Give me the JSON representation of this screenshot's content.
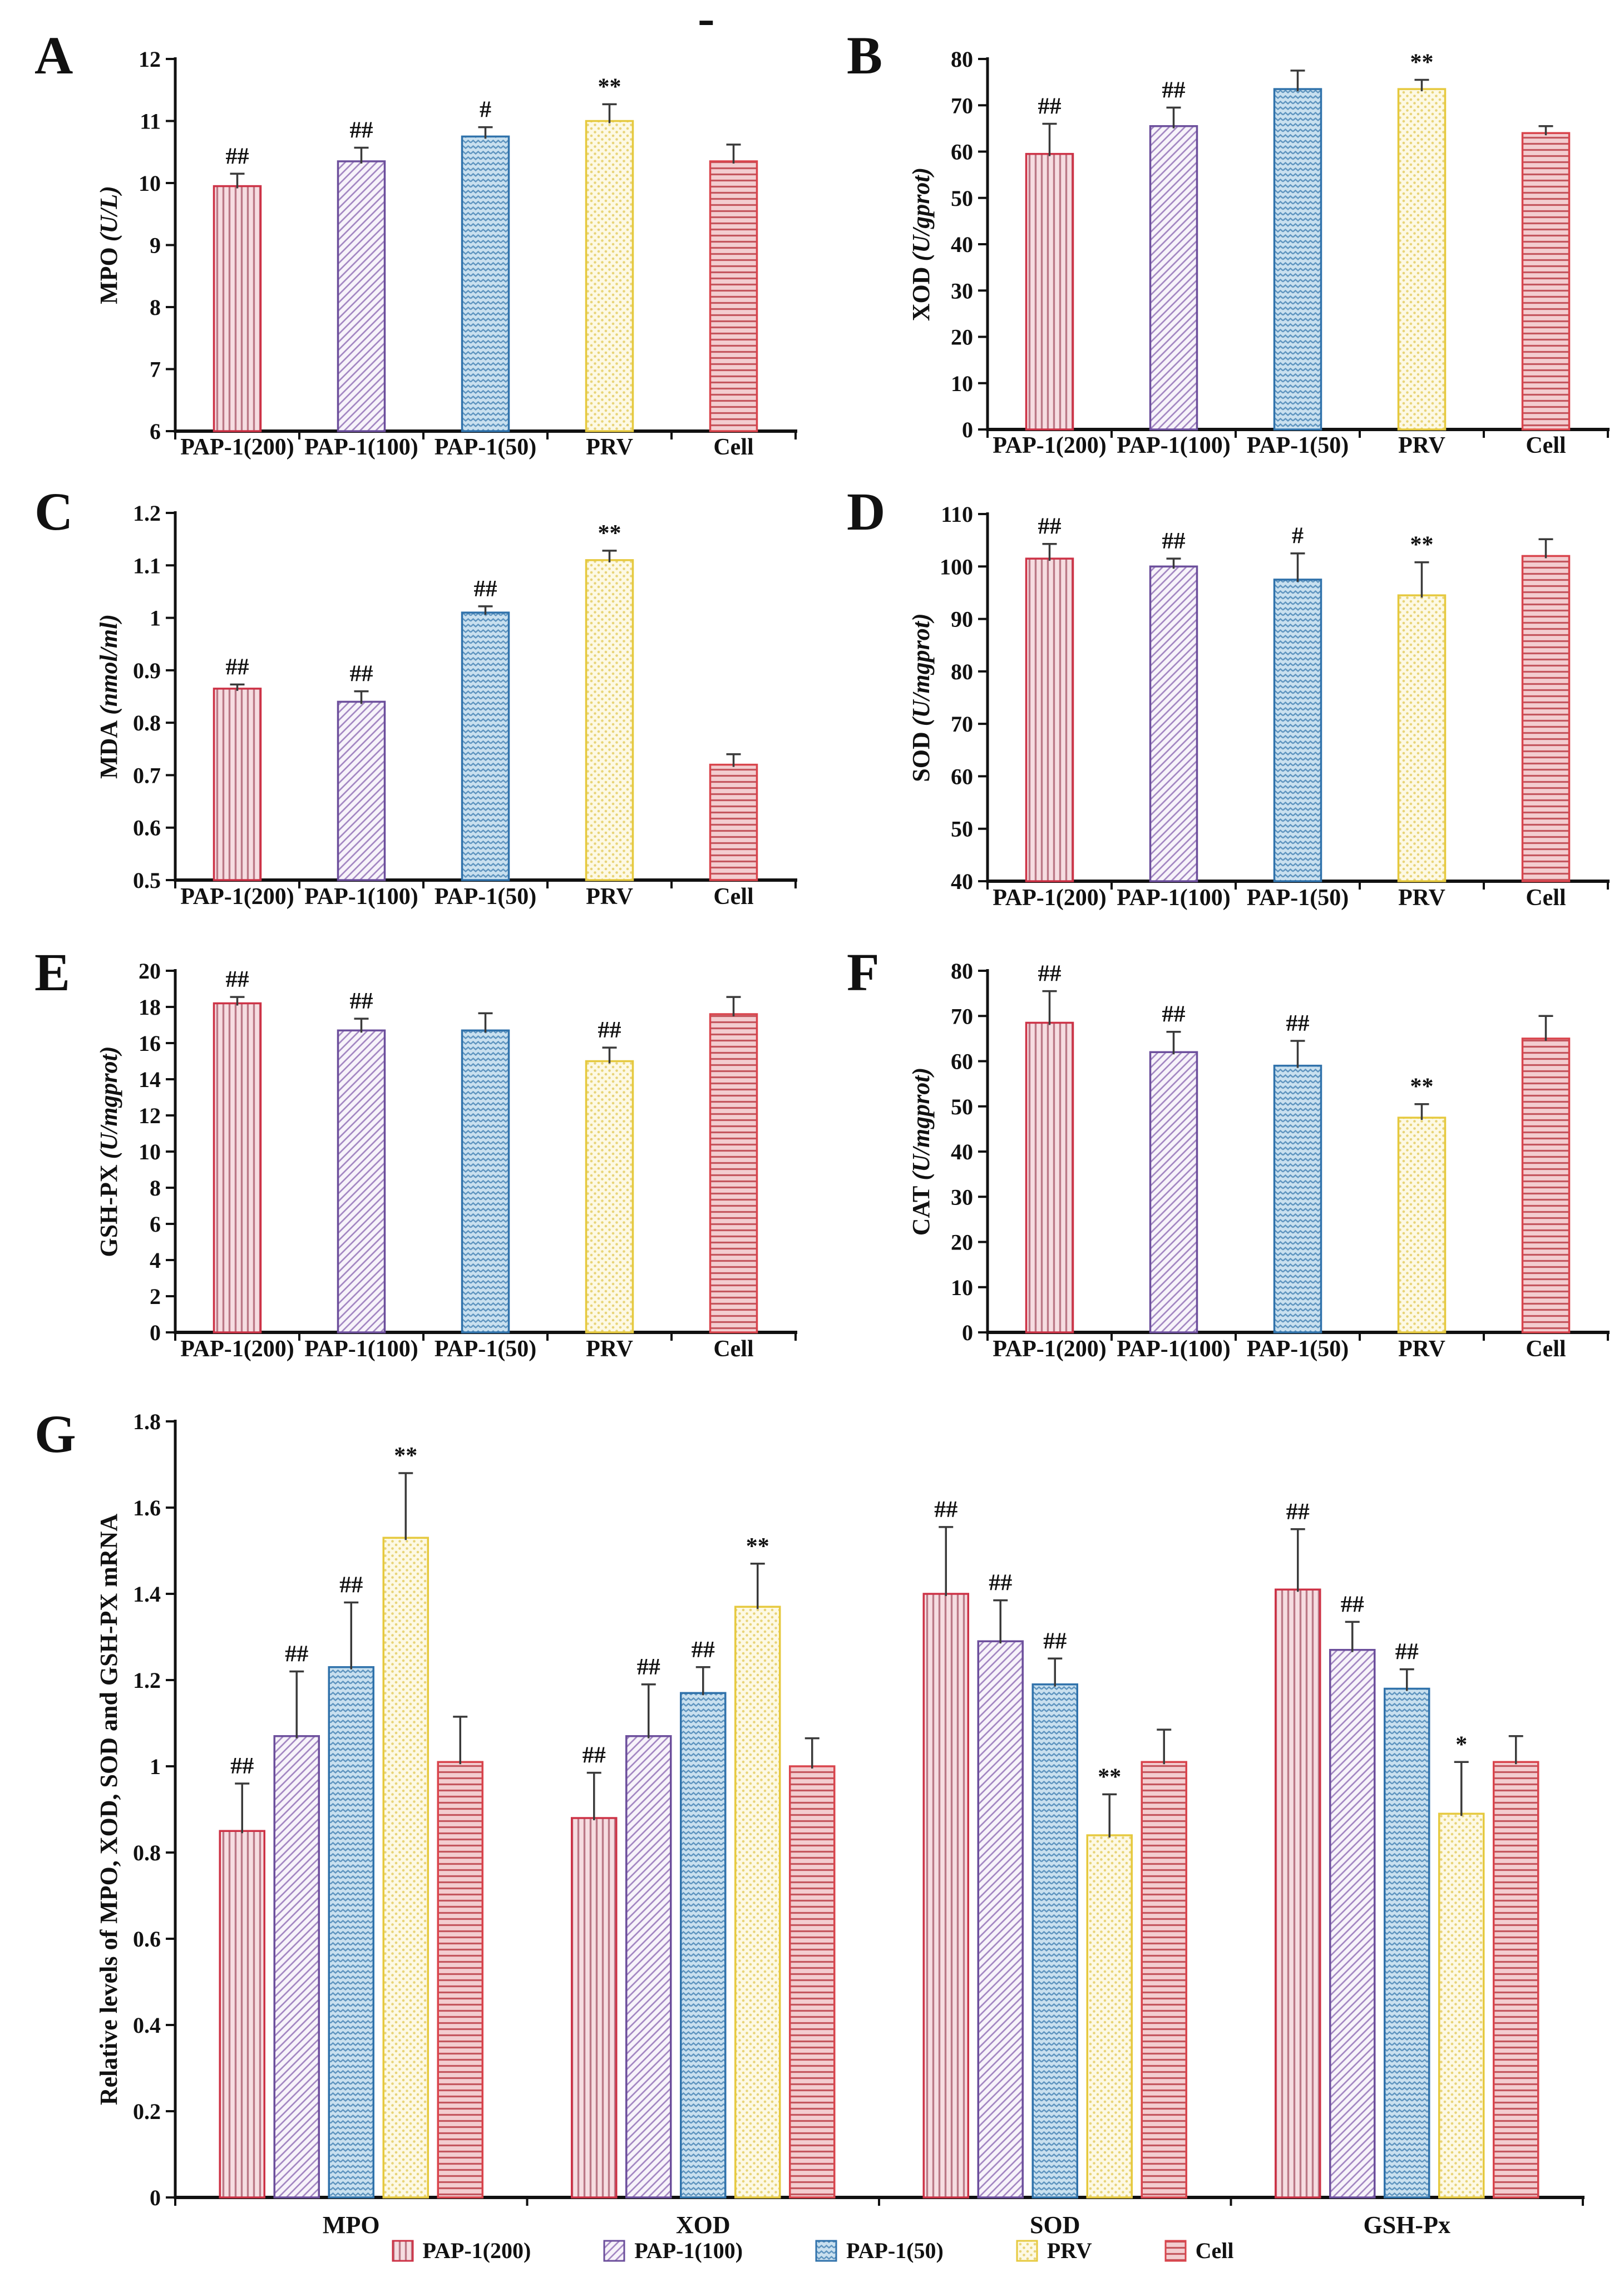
{
  "stray_mark": "-",
  "patterns": [
    {
      "id": "p200",
      "type": "vstripe",
      "bg": "#f6dde1",
      "fg": "#bb7886",
      "border": "#cd3246"
    },
    {
      "id": "p100",
      "type": "diag",
      "bg": "#f7f3fa",
      "fg": "#a083c0",
      "border": "#6c4f9c"
    },
    {
      "id": "p50",
      "type": "zigzag",
      "bg": "#c9e0ef",
      "fg": "#5e94bf",
      "border": "#3072ab"
    },
    {
      "id": "prv",
      "type": "dots",
      "bg": "#fdf9e4",
      "fg": "#e8d478",
      "border": "#e6c93e"
    },
    {
      "id": "cell",
      "type": "hstripe",
      "bg": "#f3cdd0",
      "fg": "#c4565e",
      "border": "#d9444c"
    }
  ],
  "legend": {
    "items": [
      {
        "label": "PAP-1(200)",
        "pattern": "p200"
      },
      {
        "label": "PAP-1(100)",
        "pattern": "p100"
      },
      {
        "label": "PAP-1(50)",
        "pattern": "p50"
      },
      {
        "label": "PRV",
        "pattern": "prv"
      },
      {
        "label": "Cell",
        "pattern": "cell"
      }
    ]
  },
  "chart_data": [
    {
      "id": "A",
      "letter": "A",
      "type": "bar",
      "ylabel": "MPO",
      "ylabel_unit": "(U/L)",
      "ymin": 6,
      "ymax": 12,
      "ystep": 1,
      "categories": [
        "PAP-1(200)",
        "PAP-1(100)",
        "PAP-1(50)",
        "PRV",
        "Cell"
      ],
      "bar_patterns": [
        "p200",
        "p100",
        "p50",
        "prv",
        "cell"
      ],
      "values": [
        9.95,
        10.35,
        10.75,
        11.0,
        10.35
      ],
      "errors": [
        0.2,
        0.22,
        0.15,
        0.27,
        0.27
      ],
      "annotations": [
        "##",
        "##",
        "#",
        "**",
        ""
      ]
    },
    {
      "id": "B",
      "letter": "B",
      "type": "bar",
      "ylabel": "XOD",
      "ylabel_unit": "(U/gprot)",
      "ymin": 0,
      "ymax": 80,
      "ystep": 10,
      "categories": [
        "PAP-1(200)",
        "PAP-1(100)",
        "PAP-1(50)",
        "PRV",
        "Cell"
      ],
      "bar_patterns": [
        "p200",
        "p100",
        "p50",
        "prv",
        "cell"
      ],
      "values": [
        59.5,
        65.5,
        73.5,
        73.5,
        64
      ],
      "errors": [
        6.5,
        4,
        4,
        2,
        1.5
      ],
      "annotations": [
        "##",
        "##",
        "",
        "**",
        ""
      ]
    },
    {
      "id": "C",
      "letter": "C",
      "type": "bar",
      "ylabel": "MDA",
      "ylabel_unit": "(nmol/ml)",
      "ymin": 0.5,
      "ymax": 1.2,
      "ystep": 0.1,
      "categories": [
        "PAP-1(200)",
        "PAP-1(100)",
        "PAP-1(50)",
        "PRV",
        "Cell"
      ],
      "bar_patterns": [
        "p200",
        "p100",
        "p50",
        "prv",
        "cell"
      ],
      "values": [
        0.865,
        0.84,
        1.01,
        1.11,
        0.72
      ],
      "errors": [
        0.008,
        0.02,
        0.012,
        0.018,
        0.02
      ],
      "annotations": [
        "##",
        "##",
        "##",
        "**",
        ""
      ]
    },
    {
      "id": "D",
      "letter": "D",
      "type": "bar",
      "ylabel": "SOD",
      "ylabel_unit": "(U/mgprot)",
      "ymin": 40,
      "ymax": 110,
      "ystep": 10,
      "categories": [
        "PAP-1(200)",
        "PAP-1(100)",
        "PAP-1(50)",
        "PRV",
        "Cell"
      ],
      "bar_patterns": [
        "p200",
        "p100",
        "p50",
        "prv",
        "cell"
      ],
      "values": [
        101.5,
        100,
        97.5,
        94.5,
        102
      ],
      "errors": [
        2.8,
        1.5,
        5,
        6.3,
        3.2
      ],
      "annotations": [
        "##",
        "##",
        "#",
        "**",
        ""
      ]
    },
    {
      "id": "E",
      "letter": "E",
      "type": "bar",
      "ylabel": "GSH-PX",
      "ylabel_unit": "(U/mgprot)",
      "ymin": 0,
      "ymax": 20,
      "ystep": 2,
      "categories": [
        "PAP-1(200)",
        "PAP-1(100)",
        "PAP-1(50)",
        "PRV",
        "Cell"
      ],
      "bar_patterns": [
        "p200",
        "p100",
        "p50",
        "prv",
        "cell"
      ],
      "values": [
        18.2,
        16.7,
        16.7,
        15.0,
        17.6
      ],
      "errors": [
        0.35,
        0.65,
        0.95,
        0.75,
        0.95
      ],
      "annotations": [
        "##",
        "##",
        "",
        "##",
        ""
      ]
    },
    {
      "id": "F",
      "letter": "F",
      "type": "bar",
      "ylabel": "CAT",
      "ylabel_unit": "(U/mgprot)",
      "ymin": 0,
      "ymax": 80,
      "ystep": 10,
      "categories": [
        "PAP-1(200)",
        "PAP-1(100)",
        "PAP-1(50)",
        "PRV",
        "Cell"
      ],
      "bar_patterns": [
        "p200",
        "p100",
        "p50",
        "prv",
        "cell"
      ],
      "values": [
        68.5,
        62,
        59,
        47.5,
        65
      ],
      "errors": [
        7,
        4.5,
        5.5,
        3,
        5
      ],
      "annotations": [
        "##",
        "##",
        "##",
        "**",
        ""
      ]
    },
    {
      "id": "G",
      "letter": "G",
      "type": "grouped_bar",
      "ylabel": "Relative levels of MPO, XOD, SOD and GSH-PX mRNA",
      "ylabel_unit": "",
      "ymin": 0,
      "ymax": 1.8,
      "ystep": 0.2,
      "groups": [
        "MPO",
        "XOD",
        "SOD",
        "GSH-Px"
      ],
      "series": [
        {
          "name": "PAP-1(200)",
          "pattern": "p200",
          "values": [
            0.85,
            0.88,
            1.4,
            1.41
          ],
          "errors": [
            0.11,
            0.105,
            0.155,
            0.14
          ],
          "annotations": [
            "##",
            "##",
            "##",
            "##"
          ]
        },
        {
          "name": "PAP-1(100)",
          "pattern": "p100",
          "values": [
            1.07,
            1.07,
            1.29,
            1.27
          ],
          "errors": [
            0.15,
            0.12,
            0.095,
            0.065
          ],
          "annotations": [
            "##",
            "##",
            "##",
            "##"
          ]
        },
        {
          "name": "PAP-1(50)",
          "pattern": "p50",
          "values": [
            1.23,
            1.17,
            1.19,
            1.18
          ],
          "errors": [
            0.15,
            0.06,
            0.06,
            0.045
          ],
          "annotations": [
            "##",
            "##",
            "##",
            "##"
          ]
        },
        {
          "name": "PRV",
          "pattern": "prv",
          "values": [
            1.53,
            1.37,
            0.84,
            0.89
          ],
          "errors": [
            0.15,
            0.1,
            0.095,
            0.12
          ],
          "annotations": [
            "**",
            "**",
            "**",
            "*"
          ]
        },
        {
          "name": "Cell",
          "pattern": "cell",
          "values": [
            1.01,
            1.0,
            1.01,
            1.01
          ],
          "errors": [
            0.105,
            0.065,
            0.075,
            0.06
          ],
          "annotations": [
            "",
            "",
            "",
            ""
          ]
        }
      ]
    }
  ]
}
